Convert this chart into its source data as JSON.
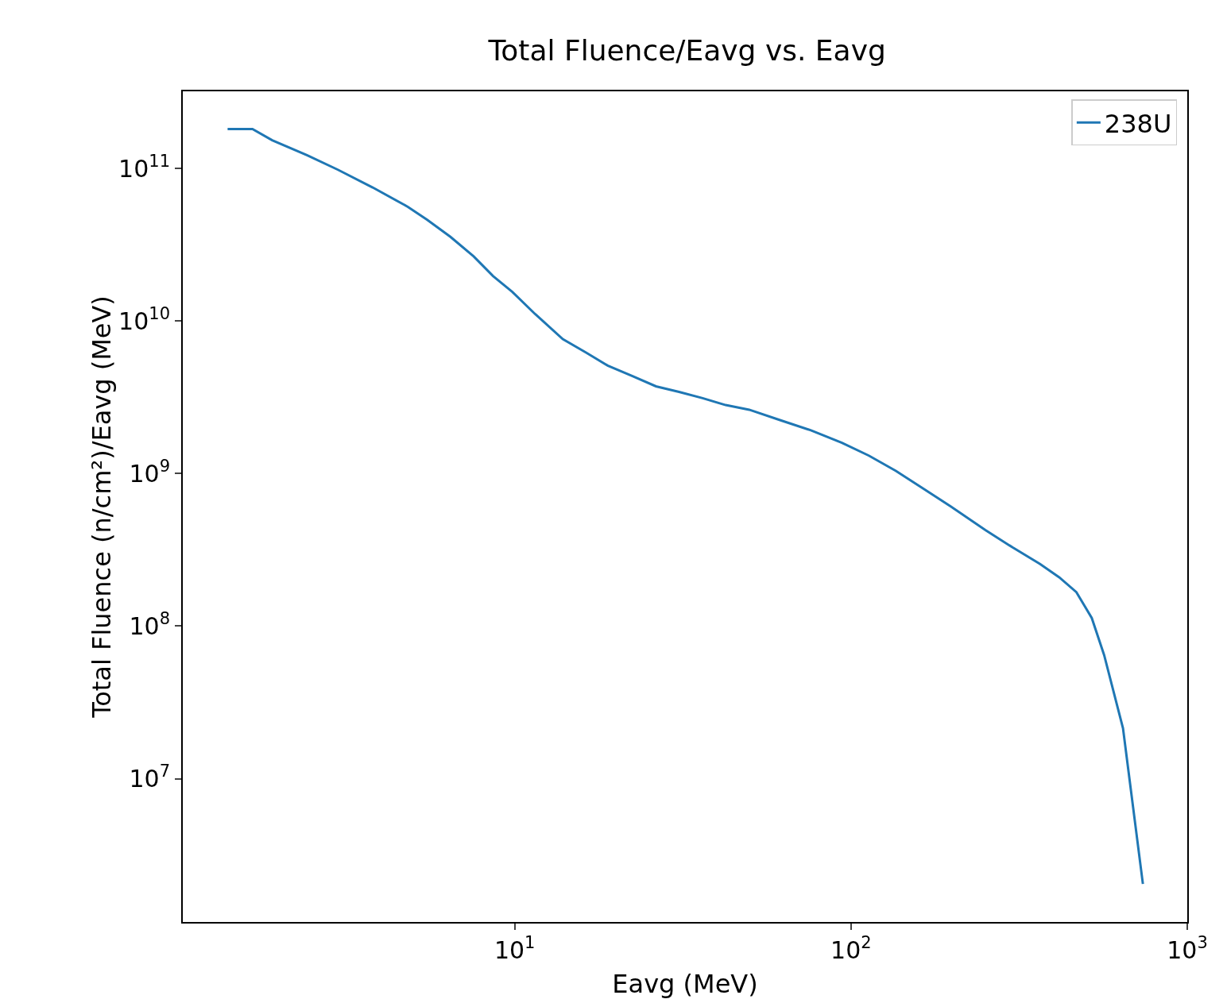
{
  "chart_data": {
    "type": "line",
    "title": "Total Fluence/Eavg vs. Eavg",
    "xlabel": "Eavg (MeV)",
    "ylabel": "Total Fluence (n/cm²)/Eavg (MeV)",
    "log": "xy",
    "grid": false,
    "legend": "top right",
    "line_style": "solid",
    "marker": "none",
    "xlim": [
      1.03,
      1000
    ],
    "ylim": [
      1150000.0,
      320000000000.0
    ],
    "xticks": [
      {
        "value": 10,
        "label": "10$^{1}$"
      },
      {
        "value": 100,
        "label": "10$^{2}$"
      },
      {
        "value": 1000,
        "label": "10$^{3}$"
      }
    ],
    "yticks": [
      {
        "value": 10000000.0,
        "label": "10$^{7}$"
      },
      {
        "value": 100000000.0,
        "label": "10$^{8}$"
      },
      {
        "value": 1000000000.0,
        "label": "10$^{9}$"
      },
      {
        "value": 10000000000.0,
        "label": "10$^{10}$"
      },
      {
        "value": 100000000000.0,
        "label": "10$^{11}$"
      }
    ],
    "x": [
      1.4,
      1.66,
      1.9,
      2.41,
      2.98,
      3.78,
      4.81,
      5.49,
      6.44,
      7.55,
      8.62,
      9.84,
      11.5,
      13.9,
      16.3,
      18.9,
      22.4,
      26.3,
      30.8,
      36.2,
      42.4,
      49.8,
      61.5,
      76,
      94,
      113,
      136,
      164,
      198,
      251,
      303,
      365,
      416,
      468,
      520,
      566,
      644,
      738
    ],
    "series": [
      {
        "name": "238U",
        "color": "#1f77b4",
        "values": [
          181000000000.0,
          181000000000.0,
          153000000000.0,
          122000000000.0,
          98000000000.0,
          75000000000.0,
          56000000000.0,
          46000000000.0,
          35600000000.0,
          26500000000.0,
          19700000000.0,
          15500000000.0,
          11100000000.0,
          7600000000.0,
          6200000000.0,
          5100000000.0,
          4350000000.0,
          3730000000.0,
          3430000000.0,
          3120000000.0,
          2810000000.0,
          2620000000.0,
          2240000000.0,
          1920000000.0,
          1590000000.0,
          1310000000.0,
          1040000000.0,
          797000000.0,
          608000000.0,
          426000000.0,
          327000000.0,
          255000000.0,
          209000000.0,
          167000000.0,
          113000000.0,
          64500000.0,
          21400000.0,
          2040000.0
        ]
      }
    ]
  }
}
